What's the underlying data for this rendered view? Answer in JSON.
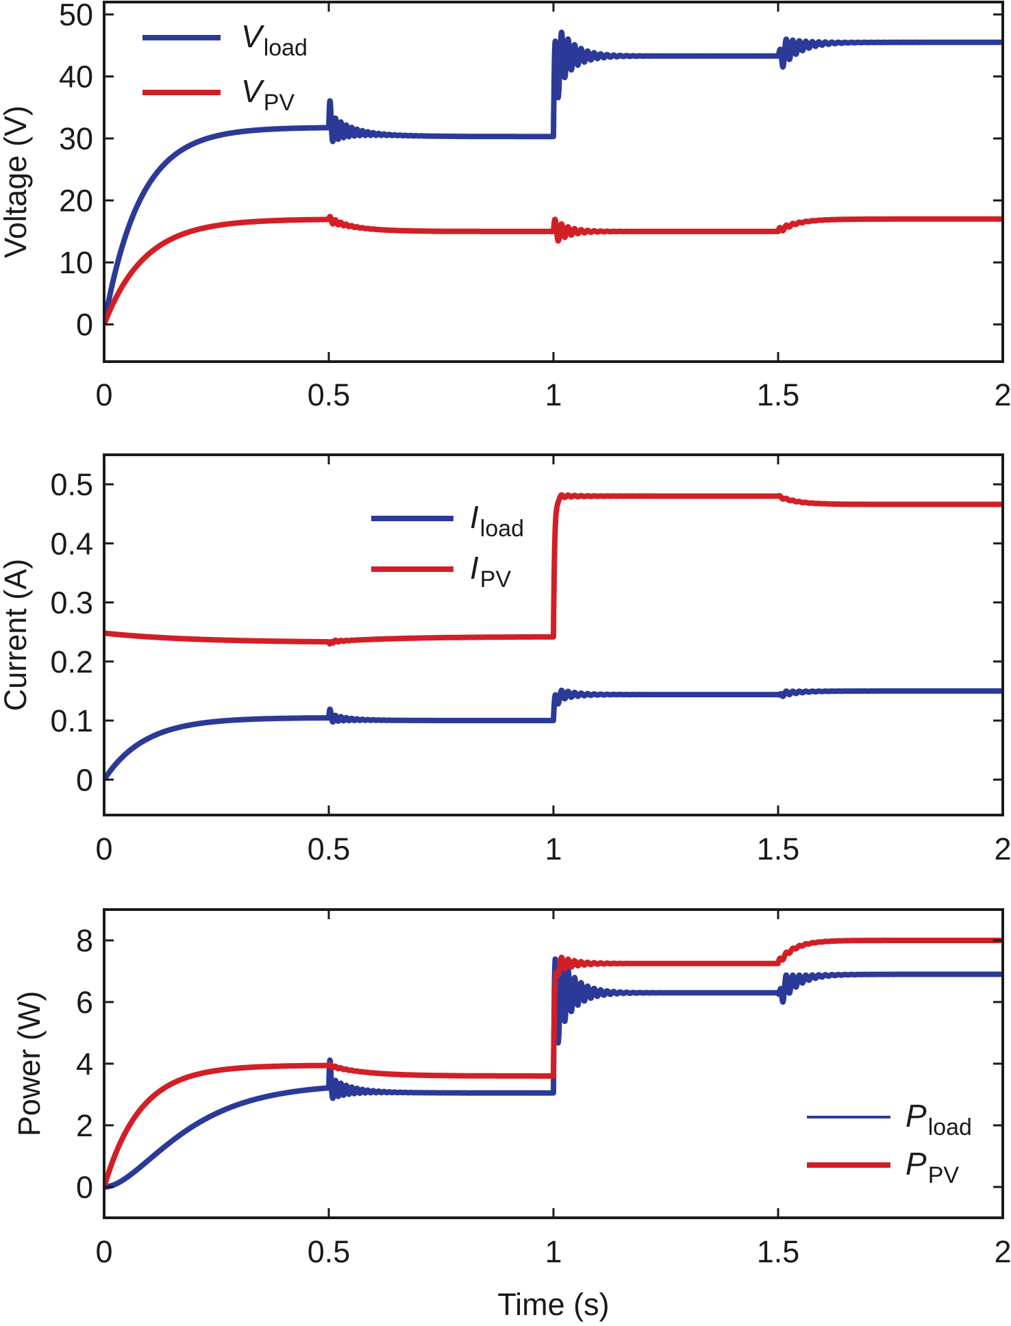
{
  "colors": {
    "load": "#2B3A98",
    "pv": "#D21F26",
    "axis": "#1a1a1a"
  },
  "chart_data": [
    {
      "type": "line",
      "title": "",
      "xlabel": "",
      "ylabel": "Voltage (V)",
      "xlim": [
        0,
        2
      ],
      "ylim": [
        -6,
        52
      ],
      "xticks": [
        0,
        0.5,
        1,
        1.5,
        2
      ],
      "xtick_labels": [
        "0",
        "0.5",
        "1",
        "1.5",
        "2"
      ],
      "yticks": [
        0,
        10,
        20,
        30,
        40,
        50
      ],
      "ytick_labels": [
        "0",
        "10",
        "20",
        "30",
        "40",
        "50"
      ],
      "grid": false,
      "legend_position": "top-left",
      "series": [
        {
          "name": "V_load",
          "legend_main": "V",
          "legend_sub": "load",
          "color_key": "load",
          "start": 0,
          "tau": 0.08,
          "segments": [
            {
              "t0": 0,
              "level": 31.8
            },
            {
              "t0": 0.5,
              "level": 30.3,
              "peak": 35.0,
              "osc_amp": 2.6,
              "osc_period": 0.012,
              "osc_decay": 0.04,
              "settle_tau": 0.08
            },
            {
              "t0": 1.0,
              "level": 43.3,
              "peak": 47.0,
              "osc_amp": 7.0,
              "osc_period": 0.0145,
              "osc_decay": 0.035,
              "settle_tau": 0.005
            },
            {
              "t0": 1.5,
              "level": 45.5,
              "peak": 40.0,
              "osc_amp": 3.0,
              "osc_period": 0.0145,
              "osc_decay": 0.04,
              "settle_tau": 0.04
            }
          ]
        },
        {
          "name": "V_PV",
          "legend_main": "V",
          "legend_sub": "PV",
          "color_key": "pv",
          "start": 0,
          "tau": 0.09,
          "segments": [
            {
              "t0": 0,
              "level": 17.0
            },
            {
              "t0": 0.5,
              "level": 15.0,
              "osc_amp": 0.6,
              "osc_period": 0.012,
              "osc_decay": 0.03,
              "settle_tau": 0.06
            },
            {
              "t0": 1.0,
              "level": 15.0,
              "osc_amp": 2.2,
              "osc_period": 0.0145,
              "osc_decay": 0.03,
              "settle_tau": 0.02
            },
            {
              "t0": 1.5,
              "level": 17.0,
              "osc_amp": 0.5,
              "osc_period": 0.0145,
              "osc_decay": 0.03,
              "settle_tau": 0.04
            }
          ]
        }
      ]
    },
    {
      "type": "line",
      "title": "",
      "xlabel": "",
      "ylabel": "Current (A)",
      "xlim": [
        0,
        2
      ],
      "ylim": [
        -0.06,
        0.55
      ],
      "xticks": [
        0,
        0.5,
        1,
        1.5,
        2
      ],
      "xtick_labels": [
        "0",
        "0.5",
        "1",
        "1.5",
        "2"
      ],
      "yticks": [
        0,
        0.1,
        0.2,
        0.3,
        0.4,
        0.5
      ],
      "ytick_labels": [
        "0",
        "0.1",
        "0.2",
        "0.3",
        "0.4",
        "0.5"
      ],
      "grid": false,
      "legend_position": "top-center",
      "series": [
        {
          "name": "I_load",
          "legend_main": "I",
          "legend_sub": "load",
          "color_key": "load",
          "start": 0,
          "tau": 0.09,
          "segments": [
            {
              "t0": 0,
              "level": 0.105
            },
            {
              "t0": 0.5,
              "level": 0.1,
              "peak": 0.117,
              "osc_amp": 0.008,
              "osc_period": 0.012,
              "osc_decay": 0.035,
              "settle_tau": 0.06
            },
            {
              "t0": 1.0,
              "level": 0.144,
              "peak": 0.156,
              "osc_amp": 0.014,
              "osc_period": 0.0145,
              "osc_decay": 0.035,
              "settle_tau": 0.005
            },
            {
              "t0": 1.5,
              "level": 0.15,
              "peak": 0.135,
              "osc_amp": 0.006,
              "osc_period": 0.0145,
              "osc_decay": 0.035,
              "settle_tau": 0.04
            }
          ]
        },
        {
          "name": "I_PV",
          "legend_main": "I",
          "legend_sub": "PV",
          "color_key": "pv",
          "start": 0.248,
          "tau": 0.2,
          "segments": [
            {
              "t0": 0,
              "level": 0.232
            },
            {
              "t0": 0.5,
              "level": 0.242,
              "peak": 0.222,
              "osc_amp": 0.004,
              "osc_period": 0.012,
              "osc_decay": 0.02,
              "settle_tau": 0.15
            },
            {
              "t0": 1.0,
              "level": 0.48,
              "peak": 0.49,
              "osc_amp": 0.004,
              "osc_period": 0.0145,
              "osc_decay": 0.04,
              "settle_tau": 0.003
            },
            {
              "t0": 1.5,
              "level": 0.466,
              "osc_amp": 0.002,
              "osc_period": 0.0145,
              "osc_decay": 0.04,
              "settle_tau": 0.04
            }
          ]
        }
      ]
    },
    {
      "type": "line",
      "title": "",
      "xlabel": "Time (s)",
      "ylabel": "Power (W)",
      "xlim": [
        0,
        2
      ],
      "ylim": [
        -1,
        9
      ],
      "xticks": [
        0,
        0.5,
        1,
        1.5,
        2
      ],
      "xtick_labels": [
        "0",
        "0.5",
        "1",
        "1.5",
        "2"
      ],
      "yticks": [
        0,
        2,
        4,
        6,
        8
      ],
      "ytick_labels": [
        "0",
        "2",
        "4",
        "6",
        "8"
      ],
      "grid": false,
      "legend_position": "bottom-right",
      "series": [
        {
          "name": "P_load",
          "legend_main": "P",
          "legend_sub": "load",
          "color_key": "load",
          "start": 0,
          "tau": 0.1,
          "rise_shape": "s",
          "segments": [
            {
              "t0": 0,
              "level": 3.35
            },
            {
              "t0": 0.5,
              "level": 3.05,
              "peak": 4.1,
              "osc_amp": 0.4,
              "osc_period": 0.012,
              "osc_decay": 0.04,
              "settle_tau": 0.07
            },
            {
              "t0": 1.0,
              "level": 6.3,
              "peak": 7.4,
              "osc_amp": 1.9,
              "osc_period": 0.0145,
              "osc_decay": 0.035,
              "settle_tau": 0.004
            },
            {
              "t0": 1.5,
              "level": 6.9,
              "peak": 5.4,
              "osc_amp": 0.6,
              "osc_period": 0.0145,
              "osc_decay": 0.035,
              "settle_tau": 0.04
            }
          ]
        },
        {
          "name": "P_PV",
          "legend_main": "P",
          "legend_sub": "PV",
          "color_key": "pv",
          "start": 0,
          "tau": 0.08,
          "segments": [
            {
              "t0": 0,
              "level": 3.95
            },
            {
              "t0": 0.5,
              "level": 3.6,
              "osc_amp": 0.05,
              "osc_period": 0.012,
              "osc_decay": 0.03,
              "settle_tau": 0.08
            },
            {
              "t0": 1.0,
              "level": 7.25,
              "peak": 7.4,
              "osc_amp": 0.35,
              "osc_period": 0.0145,
              "osc_decay": 0.035,
              "settle_tau": 0.003
            },
            {
              "t0": 1.5,
              "level": 8.0,
              "osc_amp": 0.1,
              "osc_period": 0.0145,
              "osc_decay": 0.035,
              "settle_tau": 0.035
            }
          ]
        }
      ]
    }
  ]
}
